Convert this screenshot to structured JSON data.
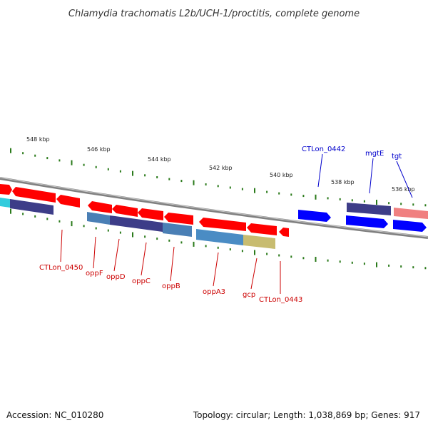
{
  "title": "Chlamydia trachomatis L2b/UCH-1/proctitis, complete genome",
  "footer": {
    "accession": "Accession: NC_010280",
    "summary": "Topology: circular; Length: 1,038,869 bp; Genes: 917"
  },
  "colors": {
    "forward_gene": "#ff0000",
    "reverse_gene": "#0000ff",
    "forward_label": "#cc0000",
    "reverse_label": "#0000cc",
    "backbone": "#808080",
    "tick": "#2a7a1a"
  },
  "scale_labels": [
    "548 kbp",
    "546 kbp",
    "544 kbp",
    "542 kbp",
    "540 kbp",
    "538 kbp",
    "536 kbp"
  ],
  "gene_labels": {
    "top": [
      "CTLon_0442",
      "mgtE",
      "tgt"
    ],
    "bottom": [
      "CTLon_0450",
      "oppF",
      "oppD",
      "oppC",
      "oppB",
      "oppA3",
      "gcp",
      "CTLon_0443"
    ]
  }
}
